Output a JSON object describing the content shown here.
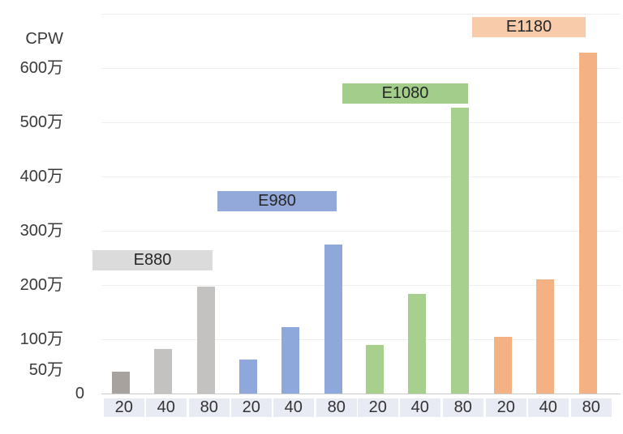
{
  "chart_data": {
    "type": "bar",
    "title": "CPW",
    "subtitle": "",
    "value_unit_suffix": "万",
    "categories_per_group": [
      "20",
      "40",
      "80"
    ],
    "groups": [
      "E880",
      "E980",
      "E1080",
      "E1180"
    ],
    "series": [
      {
        "name": "E880",
        "values_man": [
          41,
          82,
          197
        ],
        "bar_color": "#c4c2c0",
        "first_bar_color": "#a8a29e",
        "label_bg": "#dbdbdb"
      },
      {
        "name": "E980",
        "values_man": [
          62,
          122,
          275
        ],
        "bar_color": "#8ea8db",
        "first_bar_color": "#8ea8db",
        "label_bg": "#93a9d9"
      },
      {
        "name": "E1080",
        "values_man": [
          90,
          183,
          527
        ],
        "bar_color": "#a7d08f",
        "first_bar_color": "#a7d08f",
        "label_bg": "#a3cd8b"
      },
      {
        "name": "E1180",
        "values_man": [
          104,
          210,
          629
        ],
        "bar_color": "#f4b183",
        "first_bar_color": "#f4b183",
        "label_bg": "#f8cbaa"
      }
    ],
    "y_ticks": [
      {
        "label": "600万",
        "value_man": 600
      },
      {
        "label": "500万",
        "value_man": 500
      },
      {
        "label": "400万",
        "value_man": 400
      },
      {
        "label": "300万",
        "value_man": 300
      },
      {
        "label": "200万",
        "value_man": 200
      },
      {
        "label": "100万",
        "value_man": 100
      },
      {
        "label": "50万",
        "value_man": 50
      },
      {
        "label": "0",
        "value_man": 0
      }
    ],
    "ylim_man": [
      0,
      700
    ],
    "grid": "horizontal gridlines every 100万 from 100万 to 700万 plus baseline at 0",
    "legend_position": "floating colored label box above each group"
  },
  "colors": {
    "x_tick_bg": "#e9ebf4",
    "gridline": "#efefef",
    "baseline": "#c9c9c9",
    "axis_text": "#3a3a3a",
    "label_text": "#262626"
  }
}
